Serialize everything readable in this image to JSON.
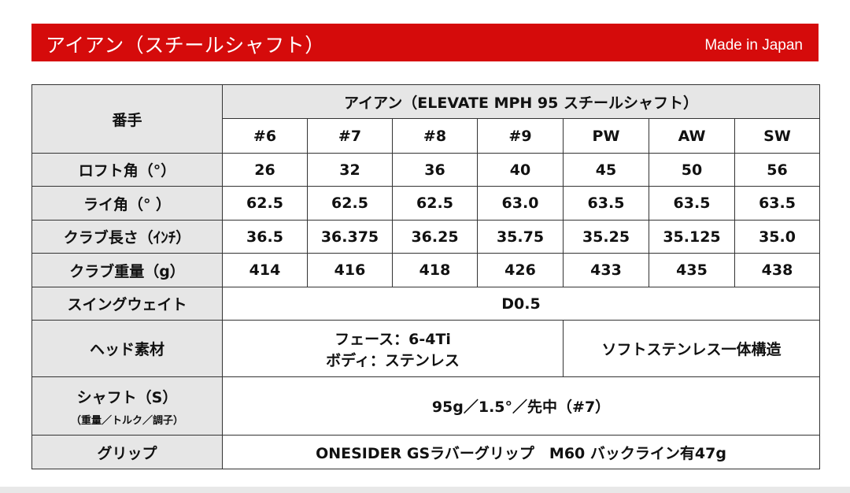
{
  "banner": {
    "title": "アイアン（スチールシャフト）",
    "origin": "Made in Japan",
    "color": "#d50b0b"
  },
  "table": {
    "corner_label": "番手",
    "group_header": "アイアン（ELEVATE MPH 95 スチールシャフト）",
    "clubs": [
      "#6",
      "#7",
      "#8",
      "#9",
      "PW",
      "AW",
      "SW"
    ],
    "rows": [
      {
        "label": "ロフト角（°）",
        "values": [
          "26",
          "32",
          "36",
          "40",
          "45",
          "50",
          "56"
        ]
      },
      {
        "label": "ライ角（° ）",
        "values": [
          "62.5",
          "62.5",
          "62.5",
          "63.0",
          "63.5",
          "63.5",
          "63.5"
        ]
      },
      {
        "label": "クラブ長さ（ｲﾝﾁ）",
        "values": [
          "36.5",
          "36.375",
          "36.25",
          "35.75",
          "35.25",
          "35.125",
          "35.0"
        ]
      },
      {
        "label": "クラブ重量（g）",
        "values": [
          "414",
          "416",
          "418",
          "426",
          "433",
          "435",
          "438"
        ]
      }
    ],
    "swing_weight": {
      "label": "スイングウェイト",
      "value": "D0.5"
    },
    "head_material": {
      "label": "ヘッド素材",
      "face": "フェース：6-4Ti",
      "body": "ボディ：ステンレス",
      "other": "ソフトステンレス一体構造"
    },
    "shaft": {
      "label": "シャフト（S）",
      "sublabel": "（重量／トルク／調子）",
      "value": "95g／1.5°／先中（#7）"
    },
    "grip": {
      "label": "グリップ",
      "value": "ONESIDER GSラバーグリップ　M60 バックライン有47g"
    }
  }
}
